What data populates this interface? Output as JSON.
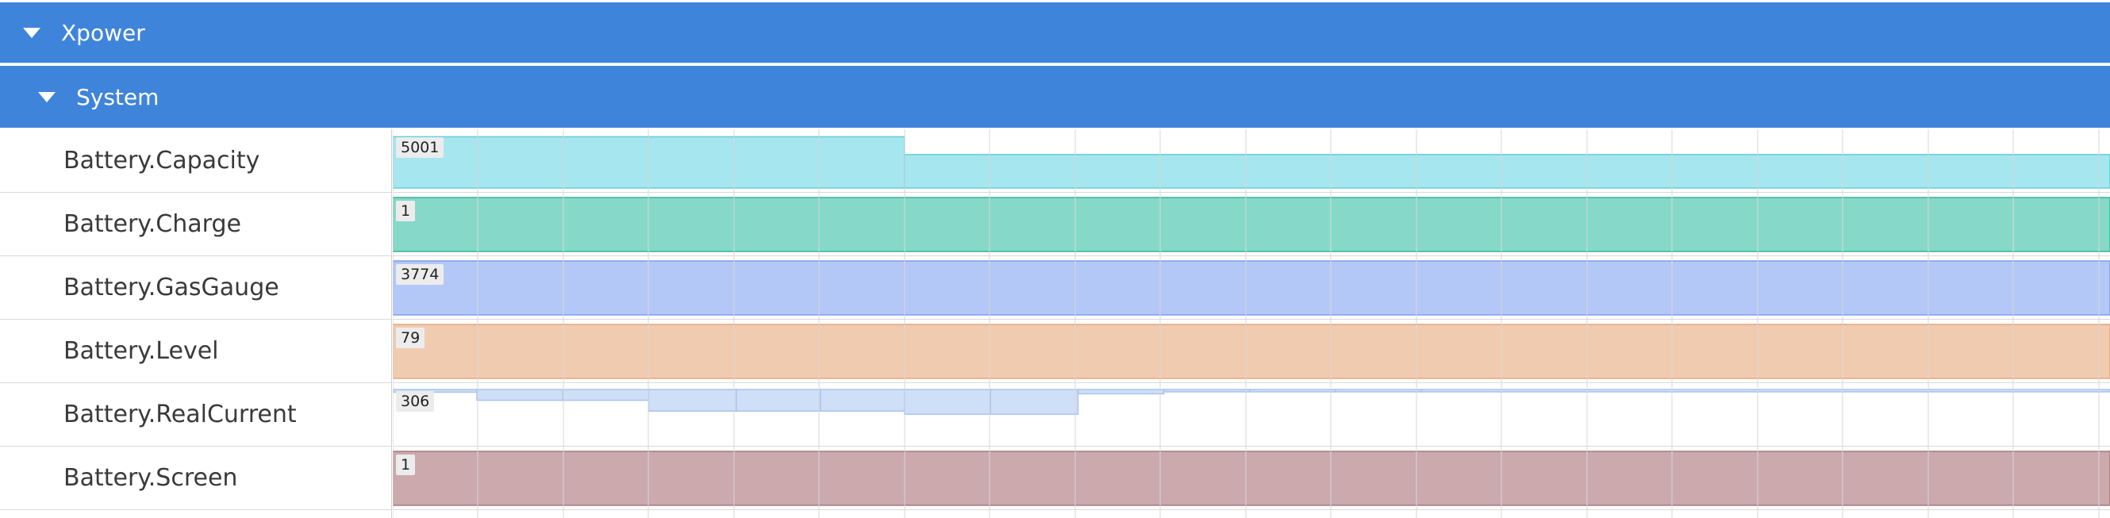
{
  "groups": [
    {
      "label": "Xpower"
    },
    {
      "label": "System"
    }
  ],
  "tracks": [
    {
      "name": "Battery.Capacity",
      "value_label": "5001",
      "color": "#a6e6ef",
      "stroke": "#5fcfdc",
      "segments": [
        {
          "from": 0,
          "to": 0.298,
          "level": 0.95
        },
        {
          "from": 0.298,
          "to": 1.0,
          "level": 0.62
        }
      ]
    },
    {
      "name": "Battery.Charge",
      "value_label": "1",
      "color": "#86d9c8",
      "stroke": "#34b596",
      "segments": [
        {
          "from": 0,
          "to": 1.0,
          "level": 1.0
        }
      ]
    },
    {
      "name": "Battery.GasGauge",
      "value_label": "3774",
      "color": "#b3c8f6",
      "stroke": "#7f9eea",
      "segments": [
        {
          "from": 0,
          "to": 1.0,
          "level": 1.0
        }
      ]
    },
    {
      "name": "Battery.Level",
      "value_label": "79",
      "color": "#f1cbb0",
      "stroke": "#e3a77e",
      "segments": [
        {
          "from": 0,
          "to": 1.0,
          "level": 1.0
        }
      ]
    },
    {
      "name": "Battery.RealCurrent",
      "value_label": "306",
      "color": "#cfdff7",
      "stroke": "#a9c3ee",
      "segments": [
        {
          "from": 0.0,
          "to": 0.049,
          "level": 0.05
        },
        {
          "from": 0.049,
          "to": 0.099,
          "level": 0.2
        },
        {
          "from": 0.099,
          "to": 0.149,
          "level": 0.2
        },
        {
          "from": 0.149,
          "to": 0.2,
          "level": 0.4
        },
        {
          "from": 0.2,
          "to": 0.249,
          "level": 0.4
        },
        {
          "from": 0.249,
          "to": 0.298,
          "level": 0.4
        },
        {
          "from": 0.298,
          "to": 0.348,
          "level": 0.46
        },
        {
          "from": 0.348,
          "to": 0.399,
          "level": 0.46
        },
        {
          "from": 0.399,
          "to": 0.449,
          "level": 0.08
        },
        {
          "from": 0.449,
          "to": 0.499,
          "level": 0.005
        },
        {
          "from": 0.499,
          "to": 0.549,
          "level": 0.02
        },
        {
          "from": 0.549,
          "to": 0.599,
          "level": 0.01
        },
        {
          "from": 0.599,
          "to": 1.0,
          "level": 0.0
        }
      ]
    },
    {
      "name": "Battery.Screen",
      "value_label": "1",
      "color": "#cba9ac",
      "stroke": "#a57b80",
      "segments": [
        {
          "from": 0,
          "to": 1.0,
          "level": 1.0
        }
      ]
    }
  ],
  "grid_color": "#d7d7d7"
}
